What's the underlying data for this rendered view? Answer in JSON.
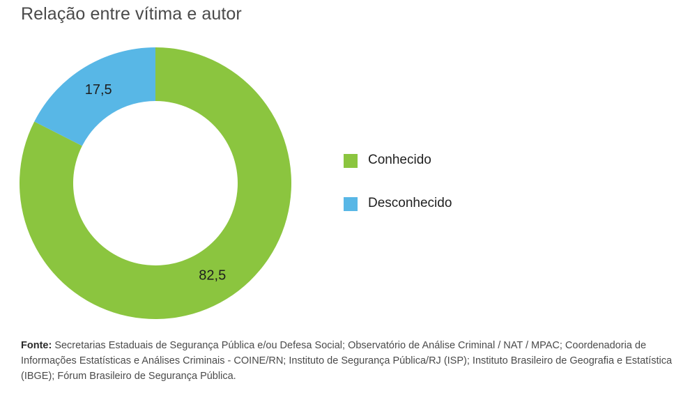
{
  "chart_data": {
    "type": "pie",
    "title": "Relação entre vítima e autor",
    "categories": [
      "Conhecido",
      "Desconhecido"
    ],
    "values": [
      82.5,
      17.5
    ],
    "value_labels": [
      "82,5",
      "17,5"
    ],
    "colors": [
      "#8bc53f",
      "#58b7e6"
    ],
    "legend_position": "right",
    "donut": true
  },
  "source": {
    "label": "Fonte:",
    "text": " Secretarias Estaduais de Segurança Pública e/ou Defesa Social; Observatório de Análise Criminal / NAT / MPAC; Coordenadoria de Informações Estatísticas e Análises Criminais - COINE/RN; Instituto de Segurança Pública/RJ (ISP); Instituto Brasileiro de Geografia e Estatística (IBGE); Fórum Brasileiro de Segurança Pública."
  }
}
